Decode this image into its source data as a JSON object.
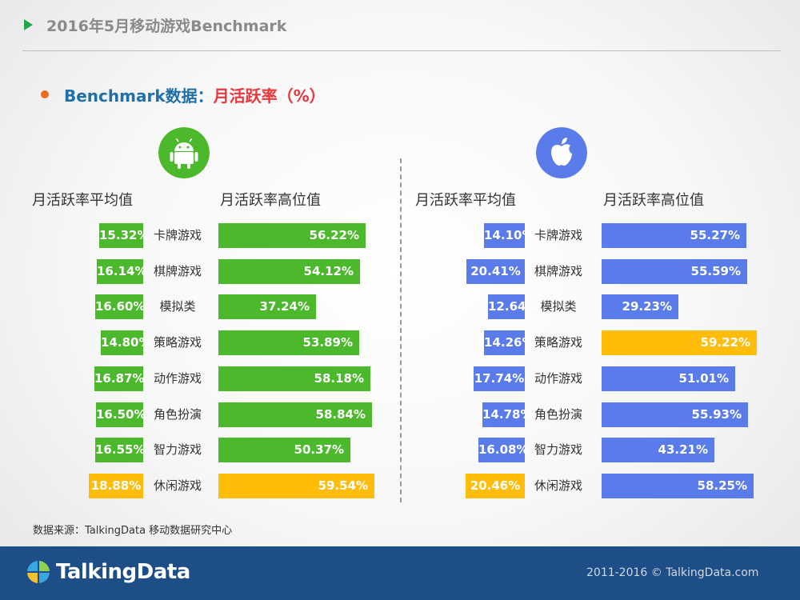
{
  "header": {
    "title": "2016年5月移动游戏Benchmark"
  },
  "subtitle": {
    "prefix": "Benchmark数据：",
    "metric": "月活跃率（%）"
  },
  "colors": {
    "green": "#4cb82c",
    "blue": "#5a7cea",
    "highlight": "#ffbd0a",
    "footer": "#1e4e87"
  },
  "icons": {
    "left": "android-logo-icon",
    "right": "apple-logo-icon"
  },
  "chart_data": [
    {
      "type": "bar",
      "platform_icon": "android-logo-icon",
      "columns": [
        "月活跃率平均值",
        "月活跃率高位值"
      ],
      "categories": [
        "卡牌游戏",
        "棋牌游戏",
        "模拟类",
        "策略游戏",
        "动作游戏",
        "角色扮演",
        "智力游戏",
        "休闲游戏"
      ],
      "series": [
        {
          "name": "月活跃率平均值",
          "values": [
            15.32,
            16.14,
            16.6,
            14.8,
            16.87,
            16.5,
            16.55,
            18.88
          ],
          "labels": [
            "15.32%",
            "16.14%",
            "16.60%",
            "14.80%",
            "16.87%",
            "16.50%",
            "16.55%",
            "18.88%"
          ],
          "highlight_index": 7
        },
        {
          "name": "月活跃率高位值",
          "values": [
            56.22,
            54.12,
            37.24,
            53.89,
            58.18,
            58.84,
            50.37,
            59.54
          ],
          "labels": [
            "56.22%",
            "54.12%",
            "37.24%",
            "53.89%",
            "58.18%",
            "58.84%",
            "50.37%",
            "59.54%"
          ],
          "highlight_index": 7
        }
      ]
    },
    {
      "type": "bar",
      "platform_icon": "apple-logo-icon",
      "columns": [
        "月活跃率平均值",
        "月活跃率高位值"
      ],
      "categories": [
        "卡牌游戏",
        "棋牌游戏",
        "模拟类",
        "策略游戏",
        "动作游戏",
        "角色扮演",
        "智力游戏",
        "休闲游戏"
      ],
      "series": [
        {
          "name": "月活跃率平均值",
          "values": [
            14.1,
            20.41,
            12.64,
            14.26,
            17.74,
            14.78,
            16.08,
            20.46
          ],
          "labels": [
            "14.10%",
            "20.41%",
            "12.64%",
            "14.26%",
            "17.74%",
            "14.78%",
            "16.08%",
            "20.46%"
          ],
          "highlight_index": 7
        },
        {
          "name": "月活跃率高位值",
          "values": [
            55.27,
            55.59,
            29.23,
            59.22,
            51.01,
            55.93,
            43.21,
            58.25
          ],
          "labels": [
            "55.27%",
            "55.59%",
            "29.23%",
            "59.22%",
            "51.01%",
            "55.93%",
            "43.21%",
            "58.25%"
          ],
          "highlight_index": 3
        }
      ]
    }
  ],
  "source": "数据来源：TalkingData 移动数据研究中心",
  "footer": {
    "brand": "TalkingData",
    "copyright": "2011-2016 © TalkingData.com"
  }
}
